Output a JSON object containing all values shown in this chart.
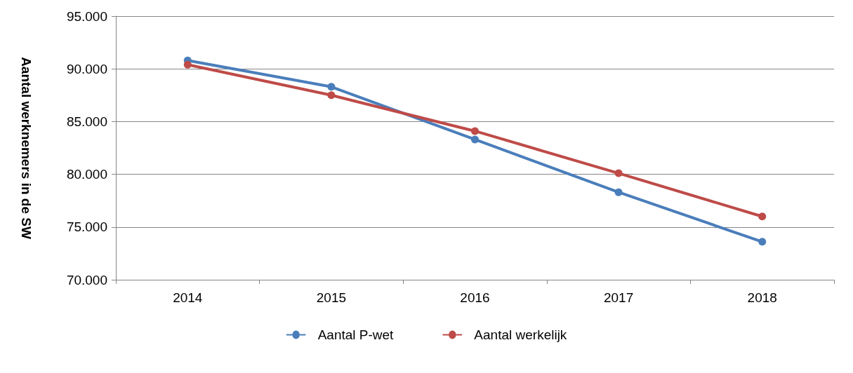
{
  "chart_data": {
    "type": "line",
    "ylabel": "Aantal werknemers in de SW",
    "categories": [
      "2014",
      "2015",
      "2016",
      "2017",
      "2018"
    ],
    "series": [
      {
        "name": "Aantal P-wet",
        "color": "#4a7ebb",
        "values": [
          90800,
          88300,
          83300,
          78300,
          73600
        ]
      },
      {
        "name": "Aantal werkelijk",
        "color": "#be4b48",
        "values": [
          90400,
          87500,
          84100,
          80100,
          76000
        ]
      }
    ],
    "ylim": [
      70000,
      95000
    ],
    "yticks": [
      {
        "value": 70000,
        "label": "70.000"
      },
      {
        "value": 75000,
        "label": "75.000"
      },
      {
        "value": 80000,
        "label": "80.000"
      },
      {
        "value": 85000,
        "label": "85.000"
      },
      {
        "value": 90000,
        "label": "90.000"
      },
      {
        "value": 95000,
        "label": "95.000"
      }
    ],
    "grid": "y",
    "legend": "bottom",
    "marker": "circle",
    "line_style": "solid"
  }
}
